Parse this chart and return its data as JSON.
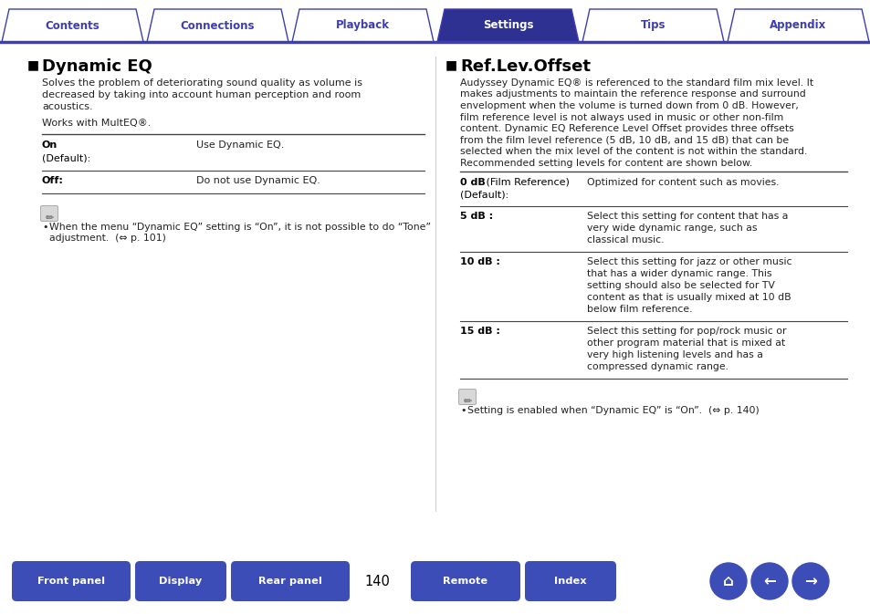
{
  "tab_labels": [
    "Contents",
    "Connections",
    "Playback",
    "Settings",
    "Tips",
    "Appendix"
  ],
  "active_tab": "Settings",
  "tab_color_active": "#2e3191",
  "tab_color_inactive": "#ffffff",
  "tab_text_active": "#ffffff",
  "tab_text_inactive": "#3d3db5",
  "tab_border_color": "#3d3db5",
  "page_bg": "#ffffff",
  "left_title": "Dynamic EQ",
  "right_title": "Ref.Lev.Offset",
  "left_body_lines": [
    "Solves the problem of deteriorating sound quality as volume is",
    "decreased by taking into account human perception and room",
    "acoustics.",
    "",
    "Works with MultEQ®."
  ],
  "left_table": [
    [
      "On\n(Default):",
      "Use Dynamic EQ."
    ],
    [
      "Off:",
      "Do not use Dynamic EQ."
    ]
  ],
  "left_note": "When the menu “Dynamic EQ” setting is “On”, it is not possible to do “Tone”\nadjustment.  (⇔ p. 101)",
  "right_body": "Audyssey Dynamic EQ® is referenced to the standard film mix level. It\nmakes adjustments to maintain the reference response and surround\nenvelopment when the volume is turned down from 0 dB. However,\nfilm reference level is not always used in music or other non-film\ncontent. Dynamic EQ Reference Level Offset provides three offsets\nfrom the film level reference (5 dB, 10 dB, and 15 dB) that can be\nselected when the mix level of the content is not within the standard.\nRecommended setting levels for content are shown below.",
  "right_table": [
    [
      "0 dB",
      " (Film Reference)\n(Default):",
      "Optimized for content such as movies."
    ],
    [
      "5 dB :",
      "",
      "Select this setting for content that has a\nvery wide dynamic range, such as\nclassical music."
    ],
    [
      "10 dB :",
      "",
      "Select this setting for jazz or other music\nthat has a wider dynamic range. This\nsetting should also be selected for TV\ncontent as that is usually mixed at 10 dB\nbelow film reference."
    ],
    [
      "15 dB :",
      "",
      "Select this setting for pop/rock music or\nother program material that is mixed at\nvery high listening levels and has a\ncompressed dynamic range."
    ]
  ],
  "right_note": "Setting is enabled when “Dynamic EQ” is “On”.  (⇔ p. 140)",
  "page_number": "140",
  "btn_color": "#3d4db7",
  "btn_text": "#ffffff",
  "body_color": "#222222",
  "line_color": "#888888"
}
